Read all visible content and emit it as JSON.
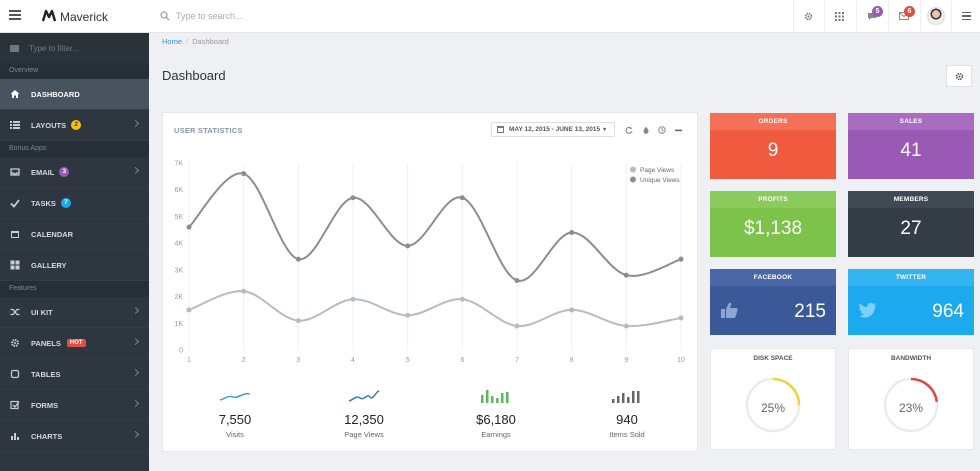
{
  "app": {
    "brand": "Maverick"
  },
  "search": {
    "placeholder": "Type to search..."
  },
  "topbar": {
    "badges": [
      {
        "icon": "gear-icon",
        "count": ""
      },
      {
        "icon": "grid-icon",
        "count": ""
      },
      {
        "icon": "chat-icon",
        "count": "5",
        "color": "#9b59b6"
      },
      {
        "icon": "mail-icon",
        "count": "6",
        "color": "#e74c3c"
      }
    ]
  },
  "sidebar": {
    "filter_placeholder": "Type to filter...",
    "sections": {
      "overview": "Overview",
      "bonus": "Bonus Apps",
      "features": "Features"
    },
    "items": {
      "dashboard": "DASHBOARD",
      "layouts": "LAYOUTS",
      "layouts_badge": "2",
      "email": "EMAIL",
      "email_badge": "3",
      "tasks": "TASKS",
      "tasks_badge": "7",
      "calendar": "CALENDAR",
      "gallery": "GALLERY",
      "uikit": "UI KIT",
      "panels": "PANELS",
      "panels_badge": "HOT",
      "tables": "TABLES",
      "forms": "FORMS",
      "charts": "CHARTS"
    }
  },
  "breadcrumb": {
    "home": "Home",
    "current": "Dashboard"
  },
  "page": {
    "title": "Dashboard"
  },
  "stats_panel": {
    "title": "USER STATISTICS",
    "date_range": "MAY 12, 2015 - JUNE 13, 2015"
  },
  "chart_data": {
    "type": "line",
    "title": "",
    "x": [
      1,
      2,
      3,
      4,
      5,
      6,
      7,
      8,
      9,
      10
    ],
    "ylim": [
      0,
      7000
    ],
    "yticks": [
      "0",
      "1K",
      "2K",
      "3K",
      "4K",
      "5K",
      "6K",
      "7K"
    ],
    "grid": "vertical",
    "legend_position": "top-right",
    "series": [
      {
        "name": "Page Views",
        "color": "#b4bcc6",
        "values": [
          1500,
          2200,
          1100,
          1900,
          1300,
          1900,
          900,
          1500,
          900,
          1200
        ]
      },
      {
        "name": "Unique Views",
        "color": "#8d8d8d",
        "values": [
          4600,
          6600,
          3400,
          5700,
          3900,
          5700,
          2600,
          4400,
          2800,
          3400
        ]
      }
    ]
  },
  "kpis": [
    {
      "value": "7,550",
      "label": "Visits",
      "icon": "sparkline-icon",
      "color": "#3498db"
    },
    {
      "value": "12,350",
      "label": "Page Views",
      "icon": "sparkline-icon",
      "color": "#2f72c4"
    },
    {
      "value": "$6,180",
      "label": "Earnings",
      "icon": "bars-icon",
      "color": "#5cb85c"
    },
    {
      "value": "940",
      "label": "Items Sold",
      "icon": "bars-icon",
      "color": "#666666"
    }
  ],
  "tiles": {
    "orders": {
      "label": "ORDERS",
      "value": "9",
      "color": "#f05a3f",
      "head": "#f47158"
    },
    "sales": {
      "label": "SALES",
      "value": "41",
      "color": "#9b59b6",
      "head": "#a86cc1"
    },
    "profits": {
      "label": "PROFITS",
      "value": "$1,138",
      "color": "#7dc24b",
      "head": "#8bcb5d"
    },
    "members": {
      "label": "MEMBERS",
      "value": "27",
      "color": "#343d46",
      "head": "#3f4953"
    },
    "facebook": {
      "label": "FACEBOOK",
      "value": "215",
      "color": "#3b5998",
      "head": "#4a67a6"
    },
    "twitter": {
      "label": "TWITTER",
      "value": "964",
      "color": "#1da9ee",
      "head": "#33b4f1"
    }
  },
  "gauges": {
    "disk": {
      "label": "DISK SPACE",
      "value": "25%",
      "fraction": 0.25,
      "color": "#f1d23a"
    },
    "bandwidth": {
      "label": "BANDWIDTH",
      "value": "23%",
      "fraction": 0.23,
      "color": "#e0473f"
    }
  }
}
